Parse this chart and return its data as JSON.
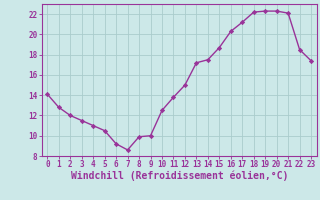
{
  "x": [
    0,
    1,
    2,
    3,
    4,
    5,
    6,
    7,
    8,
    9,
    10,
    11,
    12,
    13,
    14,
    15,
    16,
    17,
    18,
    19,
    20,
    21,
    22,
    23
  ],
  "y": [
    14.1,
    12.8,
    12.0,
    11.5,
    11.0,
    10.5,
    9.2,
    8.6,
    9.9,
    10.0,
    12.5,
    13.8,
    15.0,
    17.2,
    17.5,
    18.7,
    20.3,
    21.2,
    22.2,
    22.3,
    22.3,
    22.1,
    18.5,
    17.4
  ],
  "line_color": "#993399",
  "marker": "D",
  "marker_size": 2.2,
  "bg_color": "#cce8e8",
  "grid_color": "#aacccc",
  "xlabel": "Windchill (Refroidissement éolien,°C)",
  "ylabel": "",
  "ylim": [
    8,
    23
  ],
  "xlim": [
    -0.5,
    23.5
  ],
  "yticks": [
    8,
    10,
    12,
    14,
    16,
    18,
    20,
    22
  ],
  "xticks": [
    0,
    1,
    2,
    3,
    4,
    5,
    6,
    7,
    8,
    9,
    10,
    11,
    12,
    13,
    14,
    15,
    16,
    17,
    18,
    19,
    20,
    21,
    22,
    23
  ],
  "tick_color": "#993399",
  "tick_fontsize": 5.5,
  "xlabel_fontsize": 7,
  "line_width": 1.0
}
